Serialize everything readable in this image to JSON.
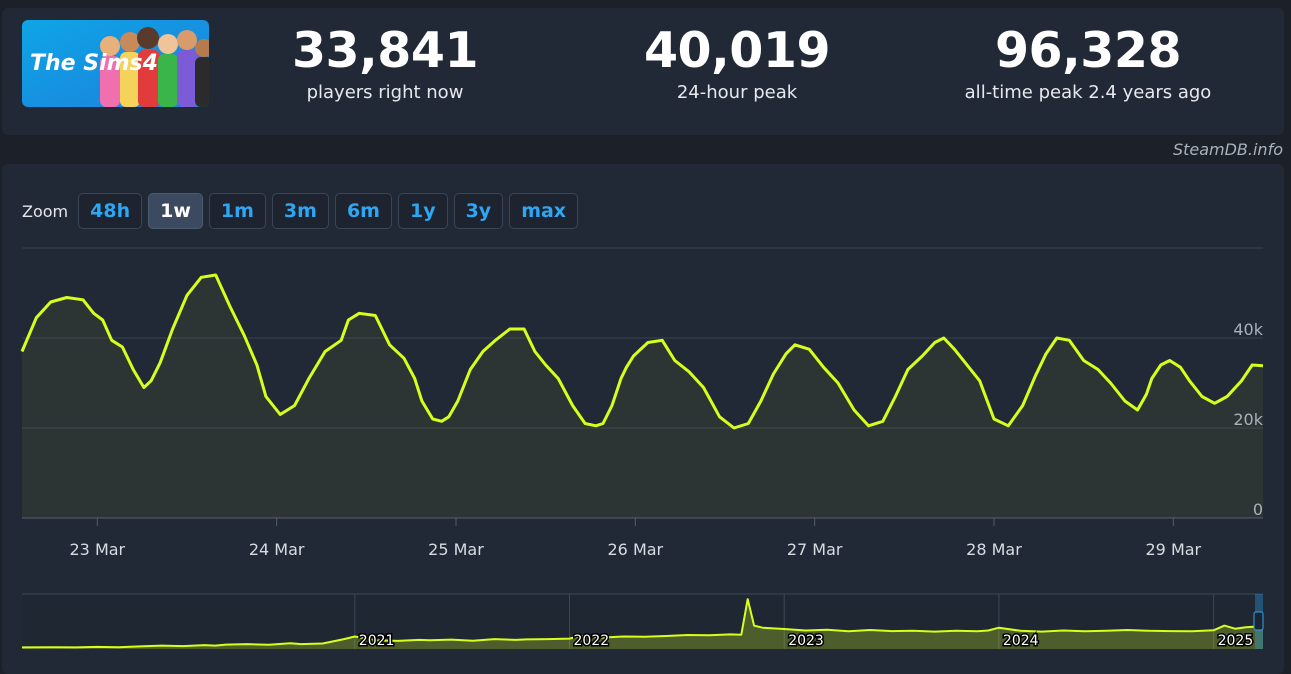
{
  "stats": [
    {
      "value": "33,841",
      "label": "players right now"
    },
    {
      "value": "40,019",
      "label": "24-hour peak"
    },
    {
      "value": "96,328",
      "label": "all-time peak 2.4 years ago"
    }
  ],
  "game_logo_text": "The Sims4",
  "watermark": "SteamDB.info",
  "zoom": {
    "label": "Zoom",
    "options": [
      "48h",
      "1w",
      "1m",
      "3m",
      "6m",
      "1y",
      "3y",
      "max"
    ],
    "active": "1w"
  },
  "colors": {
    "line": "#d6ff1c",
    "card": "#212936",
    "page": "#1b2029",
    "accent": "#2fa6f2"
  },
  "chart_data": [
    {
      "type": "line",
      "name": "main",
      "x_ticks": [
        "23 Mar",
        "24 Mar",
        "25 Mar",
        "26 Mar",
        "27 Mar",
        "28 Mar",
        "29 Mar"
      ],
      "x_tick_days": [
        1,
        2,
        3,
        4,
        5,
        6,
        7
      ],
      "xlim": [
        0.58,
        7.5
      ],
      "y_ticks": [
        "0",
        "20k",
        "40k"
      ],
      "y_tick_values": [
        0,
        20000,
        40000
      ],
      "ylim": [
        0,
        60000
      ],
      "grid": true,
      "x": [
        0.58,
        0.66,
        0.74,
        0.83,
        0.92,
        0.98,
        1.03,
        1.08,
        1.14,
        1.2,
        1.26,
        1.3,
        1.35,
        1.42,
        1.5,
        1.58,
        1.66,
        1.74,
        1.82,
        1.89,
        1.94,
        2.02,
        2.1,
        2.18,
        2.27,
        2.36,
        2.4,
        2.46,
        2.55,
        2.63,
        2.71,
        2.77,
        2.81,
        2.87,
        2.92,
        2.96,
        3.01,
        3.08,
        3.15,
        3.22,
        3.3,
        3.38,
        3.44,
        3.5,
        3.57,
        3.65,
        3.72,
        3.78,
        3.82,
        3.87,
        3.92,
        3.95,
        3.99,
        4.07,
        4.15,
        4.22,
        4.3,
        4.38,
        4.47,
        4.55,
        4.63,
        4.7,
        4.77,
        4.84,
        4.89,
        4.97,
        5.05,
        5.13,
        5.22,
        5.3,
        5.38,
        5.45,
        5.52,
        5.6,
        5.67,
        5.72,
        5.78,
        5.84,
        5.92,
        6.0,
        6.08,
        6.16,
        6.23,
        6.29,
        6.35,
        6.42,
        6.5,
        6.58,
        6.65,
        6.73,
        6.8,
        6.85,
        6.88,
        6.93,
        6.98,
        7.04,
        7.09,
        7.16,
        7.23,
        7.3,
        7.38,
        7.44,
        7.5
      ],
      "y": [
        37000,
        44500,
        48000,
        49000,
        48500,
        45500,
        44000,
        39500,
        38000,
        33000,
        29000,
        30500,
        34500,
        42000,
        49500,
        53500,
        54000,
        47000,
        40500,
        34000,
        27000,
        23000,
        25000,
        31000,
        37000,
        39500,
        44000,
        45500,
        45000,
        38500,
        35500,
        31000,
        26000,
        22000,
        21500,
        22500,
        26000,
        33000,
        37000,
        39500,
        42000,
        42000,
        37000,
        34000,
        31000,
        25000,
        21000,
        20500,
        21000,
        25000,
        31000,
        33500,
        36000,
        39000,
        39500,
        35000,
        32500,
        29000,
        22500,
        20000,
        21000,
        26000,
        32000,
        36500,
        38500,
        37500,
        33500,
        30000,
        24000,
        20500,
        21500,
        27000,
        33000,
        36000,
        39000,
        40000,
        37500,
        34500,
        30500,
        22000,
        20500,
        25000,
        31500,
        36500,
        40000,
        39500,
        35000,
        33000,
        30000,
        26000,
        24000,
        27500,
        31000,
        34000,
        35000,
        33500,
        30500,
        27000,
        25500,
        27000,
        30500,
        34000,
        33841
      ]
    },
    {
      "type": "area",
      "name": "navigator",
      "x_ticks": [
        "2021",
        "2022",
        "2023",
        "2024",
        "2025"
      ],
      "x_tick_years": [
        2021,
        2022,
        2023,
        2024,
        2025
      ],
      "xlim": [
        2019.45,
        2025.23
      ],
      "ylim": [
        0,
        100000
      ],
      "x": [
        2019.45,
        2019.6,
        2019.7,
        2019.8,
        2019.9,
        2020.0,
        2020.1,
        2020.2,
        2020.3,
        2020.35,
        2020.4,
        2020.5,
        2020.6,
        2020.7,
        2020.75,
        2020.85,
        2020.95,
        2021.0,
        2021.1,
        2021.2,
        2021.3,
        2021.35,
        2021.45,
        2021.55,
        2021.65,
        2021.75,
        2021.8,
        2021.9,
        2022.0,
        2022.05,
        2022.15,
        2022.25,
        2022.35,
        2022.45,
        2022.55,
        2022.65,
        2022.75,
        2022.8,
        2022.83,
        2022.86,
        2022.9,
        2023.0,
        2023.1,
        2023.2,
        2023.3,
        2023.4,
        2023.5,
        2023.6,
        2023.7,
        2023.8,
        2023.9,
        2023.95,
        2024.0,
        2024.1,
        2024.2,
        2024.3,
        2024.4,
        2024.5,
        2024.6,
        2024.7,
        2024.8,
        2024.9,
        2025.0,
        2025.05,
        2025.1,
        2025.15,
        2025.23
      ],
      "y": [
        3000,
        3500,
        3000,
        4000,
        3500,
        5000,
        6500,
        5500,
        7500,
        6500,
        8500,
        9500,
        8000,
        11000,
        9500,
        10500,
        19000,
        24000,
        17000,
        15500,
        17500,
        17000,
        18000,
        16000,
        19000,
        17500,
        18500,
        19000,
        20000,
        25000,
        22000,
        24000,
        23500,
        25000,
        27000,
        26500,
        28000,
        27500,
        96000,
        45000,
        41000,
        38500,
        35500,
        37000,
        34000,
        36500,
        34500,
        35000,
        33500,
        35000,
        34000,
        35500,
        41000,
        35000,
        33500,
        35500,
        34000,
        35000,
        36500,
        35000,
        34500,
        34000,
        36000,
        45000,
        39000,
        42000,
        44000
      ]
    }
  ]
}
